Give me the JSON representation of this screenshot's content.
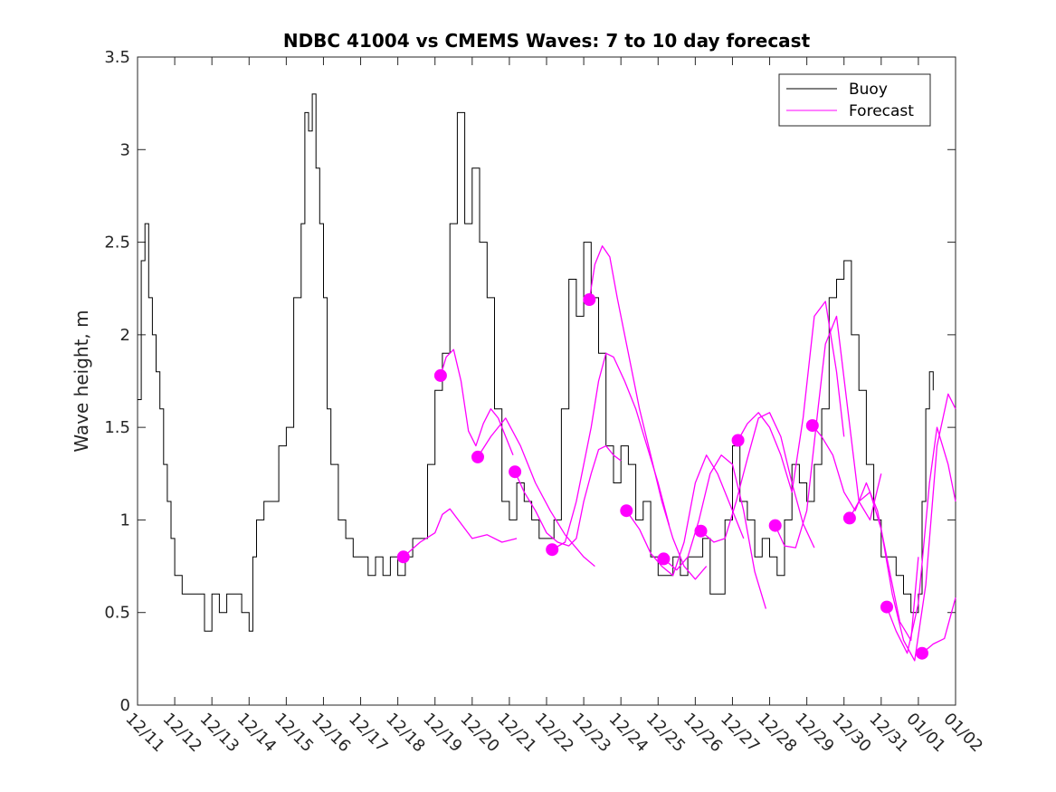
{
  "chart_data": {
    "type": "line",
    "title": "NDBC 41004 vs CMEMS Waves: 7 to 10 day forecast",
    "xlabel": "",
    "ylabel": "Wave height, m",
    "xlim": [
      0,
      22
    ],
    "ylim": [
      0,
      3.5
    ],
    "x_ticks": [
      0,
      1,
      2,
      3,
      4,
      5,
      6,
      7,
      8,
      9,
      10,
      11,
      12,
      13,
      14,
      15,
      16,
      17,
      18,
      19,
      20,
      21,
      22
    ],
    "x_tick_labels": [
      "12/11",
      "12/12",
      "12/13",
      "12/14",
      "12/15",
      "12/16",
      "12/17",
      "12/18",
      "12/19",
      "12/20",
      "12/21",
      "12/22",
      "12/23",
      "12/24",
      "12/25",
      "12/26",
      "12/27",
      "12/28",
      "12/29",
      "12/30",
      "12/31",
      "01/01",
      "01/02"
    ],
    "y_ticks": [
      0,
      0.5,
      1,
      1.5,
      2,
      2.5,
      3,
      3.5
    ],
    "y_tick_labels": [
      "0",
      "0.5",
      "1",
      "1.5",
      "2",
      "2.5",
      "3",
      "3.5"
    ],
    "legend_position": "top-right",
    "colors": {
      "buoy": "#000000",
      "forecast": "#ff00ff"
    },
    "series": [
      {
        "name": "Buoy",
        "color": "#000000",
        "x": [
          0,
          0.1,
          0.2,
          0.3,
          0.4,
          0.5,
          0.6,
          0.7,
          0.8,
          0.9,
          1.0,
          1.2,
          1.4,
          1.6,
          1.8,
          2.0,
          2.2,
          2.4,
          2.6,
          2.8,
          3.0,
          3.1,
          3.2,
          3.4,
          3.6,
          3.8,
          4.0,
          4.2,
          4.4,
          4.5,
          4.6,
          4.7,
          4.8,
          4.9,
          5.0,
          5.1,
          5.2,
          5.4,
          5.6,
          5.8,
          6.0,
          6.2,
          6.4,
          6.6,
          6.8,
          7.0,
          7.2,
          7.4,
          7.6,
          7.8,
          8.0,
          8.2,
          8.4,
          8.6,
          8.8,
          9.0,
          9.2,
          9.4,
          9.6,
          9.8,
          10.0,
          10.2,
          10.4,
          10.6,
          10.8,
          11.0,
          11.2,
          11.4,
          11.6,
          11.8,
          12.0,
          12.2,
          12.4,
          12.6,
          12.8,
          13.0,
          13.2,
          13.4,
          13.6,
          13.8,
          14.0,
          14.2,
          14.4,
          14.6,
          14.8,
          15.0,
          15.2,
          15.4,
          15.6,
          15.8,
          16.0,
          16.2,
          16.4,
          16.6,
          16.8,
          17.0,
          17.2,
          17.4,
          17.6,
          17.8,
          18.0,
          18.2,
          18.4,
          18.6,
          18.8,
          19.0,
          19.2,
          19.4,
          19.6,
          19.8,
          20.0,
          20.2,
          20.4,
          20.6,
          20.8,
          21.0,
          21.1,
          21.2,
          21.3,
          21.4
        ],
        "y": [
          1.65,
          2.4,
          2.6,
          2.2,
          2.0,
          1.8,
          1.6,
          1.3,
          1.1,
          0.9,
          0.7,
          0.6,
          0.6,
          0.6,
          0.4,
          0.6,
          0.5,
          0.6,
          0.6,
          0.5,
          0.4,
          0.8,
          1.0,
          1.1,
          1.1,
          1.4,
          1.5,
          2.2,
          2.6,
          3.2,
          3.1,
          3.3,
          2.9,
          2.6,
          2.2,
          1.6,
          1.3,
          1.0,
          0.9,
          0.8,
          0.8,
          0.7,
          0.8,
          0.7,
          0.8,
          0.7,
          0.8,
          0.9,
          0.9,
          1.3,
          1.7,
          1.9,
          2.6,
          3.2,
          2.6,
          2.9,
          2.5,
          2.2,
          1.6,
          1.1,
          1.0,
          1.2,
          1.1,
          1.0,
          0.9,
          0.9,
          1.0,
          1.6,
          2.3,
          2.1,
          2.5,
          2.2,
          1.9,
          1.4,
          1.2,
          1.4,
          1.3,
          1.0,
          1.1,
          0.8,
          0.7,
          0.7,
          0.8,
          0.7,
          0.8,
          0.8,
          0.9,
          0.6,
          0.6,
          1.0,
          1.4,
          1.1,
          1.0,
          0.8,
          0.9,
          0.8,
          0.7,
          1.0,
          1.3,
          1.2,
          1.1,
          1.3,
          1.6,
          2.2,
          2.3,
          2.4,
          2.0,
          1.7,
          1.3,
          1.0,
          0.8,
          0.8,
          0.7,
          0.6,
          0.5,
          0.6,
          1.1,
          1.6,
          1.8,
          1.7
        ]
      },
      {
        "name": "Forecast",
        "color": "#ff00ff",
        "segments": [
          {
            "x": [
              7.15,
              7.6,
              8.0,
              8.2,
              8.4,
              8.7,
              9.0,
              9.4,
              9.8,
              10.2
            ],
            "y": [
              0.8,
              0.88,
              0.93,
              1.03,
              1.06,
              0.98,
              0.9,
              0.92,
              0.88,
              0.9
            ]
          },
          {
            "x": [
              8.15,
              8.3,
              8.5,
              8.7,
              8.9,
              9.1,
              9.3,
              9.5,
              9.7,
              9.9,
              10.1
            ],
            "y": [
              1.78,
              1.88,
              1.92,
              1.75,
              1.48,
              1.4,
              1.52,
              1.6,
              1.55,
              1.45,
              1.35
            ]
          },
          {
            "x": [
              9.15,
              9.5,
              9.9,
              10.3,
              10.7,
              11.1,
              11.5,
              12.0,
              12.3
            ],
            "y": [
              1.34,
              1.45,
              1.55,
              1.4,
              1.2,
              1.05,
              0.92,
              0.8,
              0.75
            ]
          },
          {
            "x": [
              10.15,
              10.4,
              10.7,
              11.0,
              11.3,
              11.6,
              11.8,
              12.0,
              12.2,
              12.4,
              12.6,
              12.8,
              13.0
            ],
            "y": [
              1.26,
              1.15,
              1.05,
              0.93,
              0.88,
              0.86,
              0.9,
              1.1,
              1.25,
              1.38,
              1.4,
              1.35,
              1.32
            ]
          },
          {
            "x": [
              11.15,
              11.5,
              11.8,
              12.0,
              12.2,
              12.4,
              12.6,
              12.8,
              13.1,
              13.4,
              13.7,
              14.0,
              14.3
            ],
            "y": [
              0.84,
              0.88,
              1.1,
              1.3,
              1.5,
              1.75,
              1.9,
              1.88,
              1.75,
              1.6,
              1.4,
              1.2,
              0.97
            ]
          },
          {
            "x": [
              12.15,
              12.3,
              12.5,
              12.7,
              12.9,
              13.2,
              13.5,
              13.8,
              14.1,
              14.4,
              14.7,
              15.0,
              15.3
            ],
            "y": [
              2.19,
              2.38,
              2.48,
              2.42,
              2.2,
              1.9,
              1.6,
              1.35,
              1.1,
              0.9,
              0.75,
              0.68,
              0.75
            ]
          },
          {
            "x": [
              13.15,
              13.5,
              13.8,
              14.1,
              14.4,
              14.7,
              15.0,
              15.3,
              15.6,
              16.0,
              16.3
            ],
            "y": [
              1.05,
              0.95,
              0.82,
              0.75,
              0.7,
              0.88,
              1.2,
              1.35,
              1.25,
              1.05,
              0.9
            ]
          },
          {
            "x": [
              14.15,
              14.5,
              14.8,
              15.1,
              15.4,
              15.7,
              16.0,
              16.3,
              16.6,
              16.9
            ],
            "y": [
              0.79,
              0.73,
              0.8,
              1.0,
              1.25,
              1.35,
              1.3,
              1.05,
              0.72,
              0.52
            ]
          },
          {
            "x": [
              15.15,
              15.5,
              15.8,
              16.1,
              16.4,
              16.7,
              17.0,
              17.3,
              17.6,
              17.9,
              18.2
            ],
            "y": [
              0.94,
              0.88,
              0.9,
              1.1,
              1.33,
              1.55,
              1.58,
              1.45,
              1.2,
              0.98,
              0.85
            ]
          },
          {
            "x": [
              16.15,
              16.4,
              16.7,
              17.0,
              17.3,
              17.6,
              17.9,
              18.2,
              18.5,
              18.8,
              19.0
            ],
            "y": [
              1.43,
              1.52,
              1.58,
              1.5,
              1.35,
              1.15,
              1.55,
              2.1,
              2.18,
              1.8,
              1.45
            ]
          },
          {
            "x": [
              17.15,
              17.4,
              17.7,
              18.0,
              18.3,
              18.5,
              18.8,
              19.1,
              19.4,
              19.7,
              20.0
            ],
            "y": [
              0.97,
              0.86,
              0.85,
              1.05,
              1.6,
              1.95,
              2.1,
              1.6,
              1.1,
              1.0,
              1.25
            ]
          },
          {
            "x": [
              18.15,
              18.4,
              18.7,
              19.0,
              19.3,
              19.6,
              19.9,
              20.2,
              20.5,
              20.8,
              21.0
            ],
            "y": [
              1.51,
              1.45,
              1.35,
              1.15,
              1.05,
              1.2,
              1.05,
              0.75,
              0.45,
              0.35,
              0.8
            ]
          },
          {
            "x": [
              19.15,
              19.4,
              19.7,
              20.0,
              20.3,
              20.6,
              20.9,
              21.2,
              21.5,
              21.8,
              22.0
            ],
            "y": [
              1.01,
              1.1,
              1.15,
              0.95,
              0.6,
              0.35,
              0.24,
              0.65,
              1.4,
              1.68,
              1.6
            ]
          },
          {
            "x": [
              20.15,
              20.4,
              20.7,
              21.0,
              21.3,
              21.5,
              21.8,
              22.0
            ],
            "y": [
              0.53,
              0.4,
              0.28,
              0.55,
              1.2,
              1.5,
              1.3,
              1.1
            ]
          },
          {
            "x": [
              21.1,
              21.4,
              21.7,
              22.0
            ],
            "y": [
              0.28,
              0.33,
              0.36,
              0.58
            ]
          }
        ]
      }
    ],
    "markers": {
      "x": [
        7.15,
        8.15,
        9.15,
        10.15,
        11.15,
        12.15,
        13.15,
        14.15,
        15.15,
        16.15,
        17.15,
        18.15,
        19.15,
        20.15,
        21.1
      ],
      "y": [
        0.8,
        1.78,
        1.34,
        1.26,
        0.84,
        2.19,
        1.05,
        0.79,
        0.94,
        1.43,
        0.97,
        1.51,
        1.01,
        0.53,
        0.28
      ]
    }
  }
}
